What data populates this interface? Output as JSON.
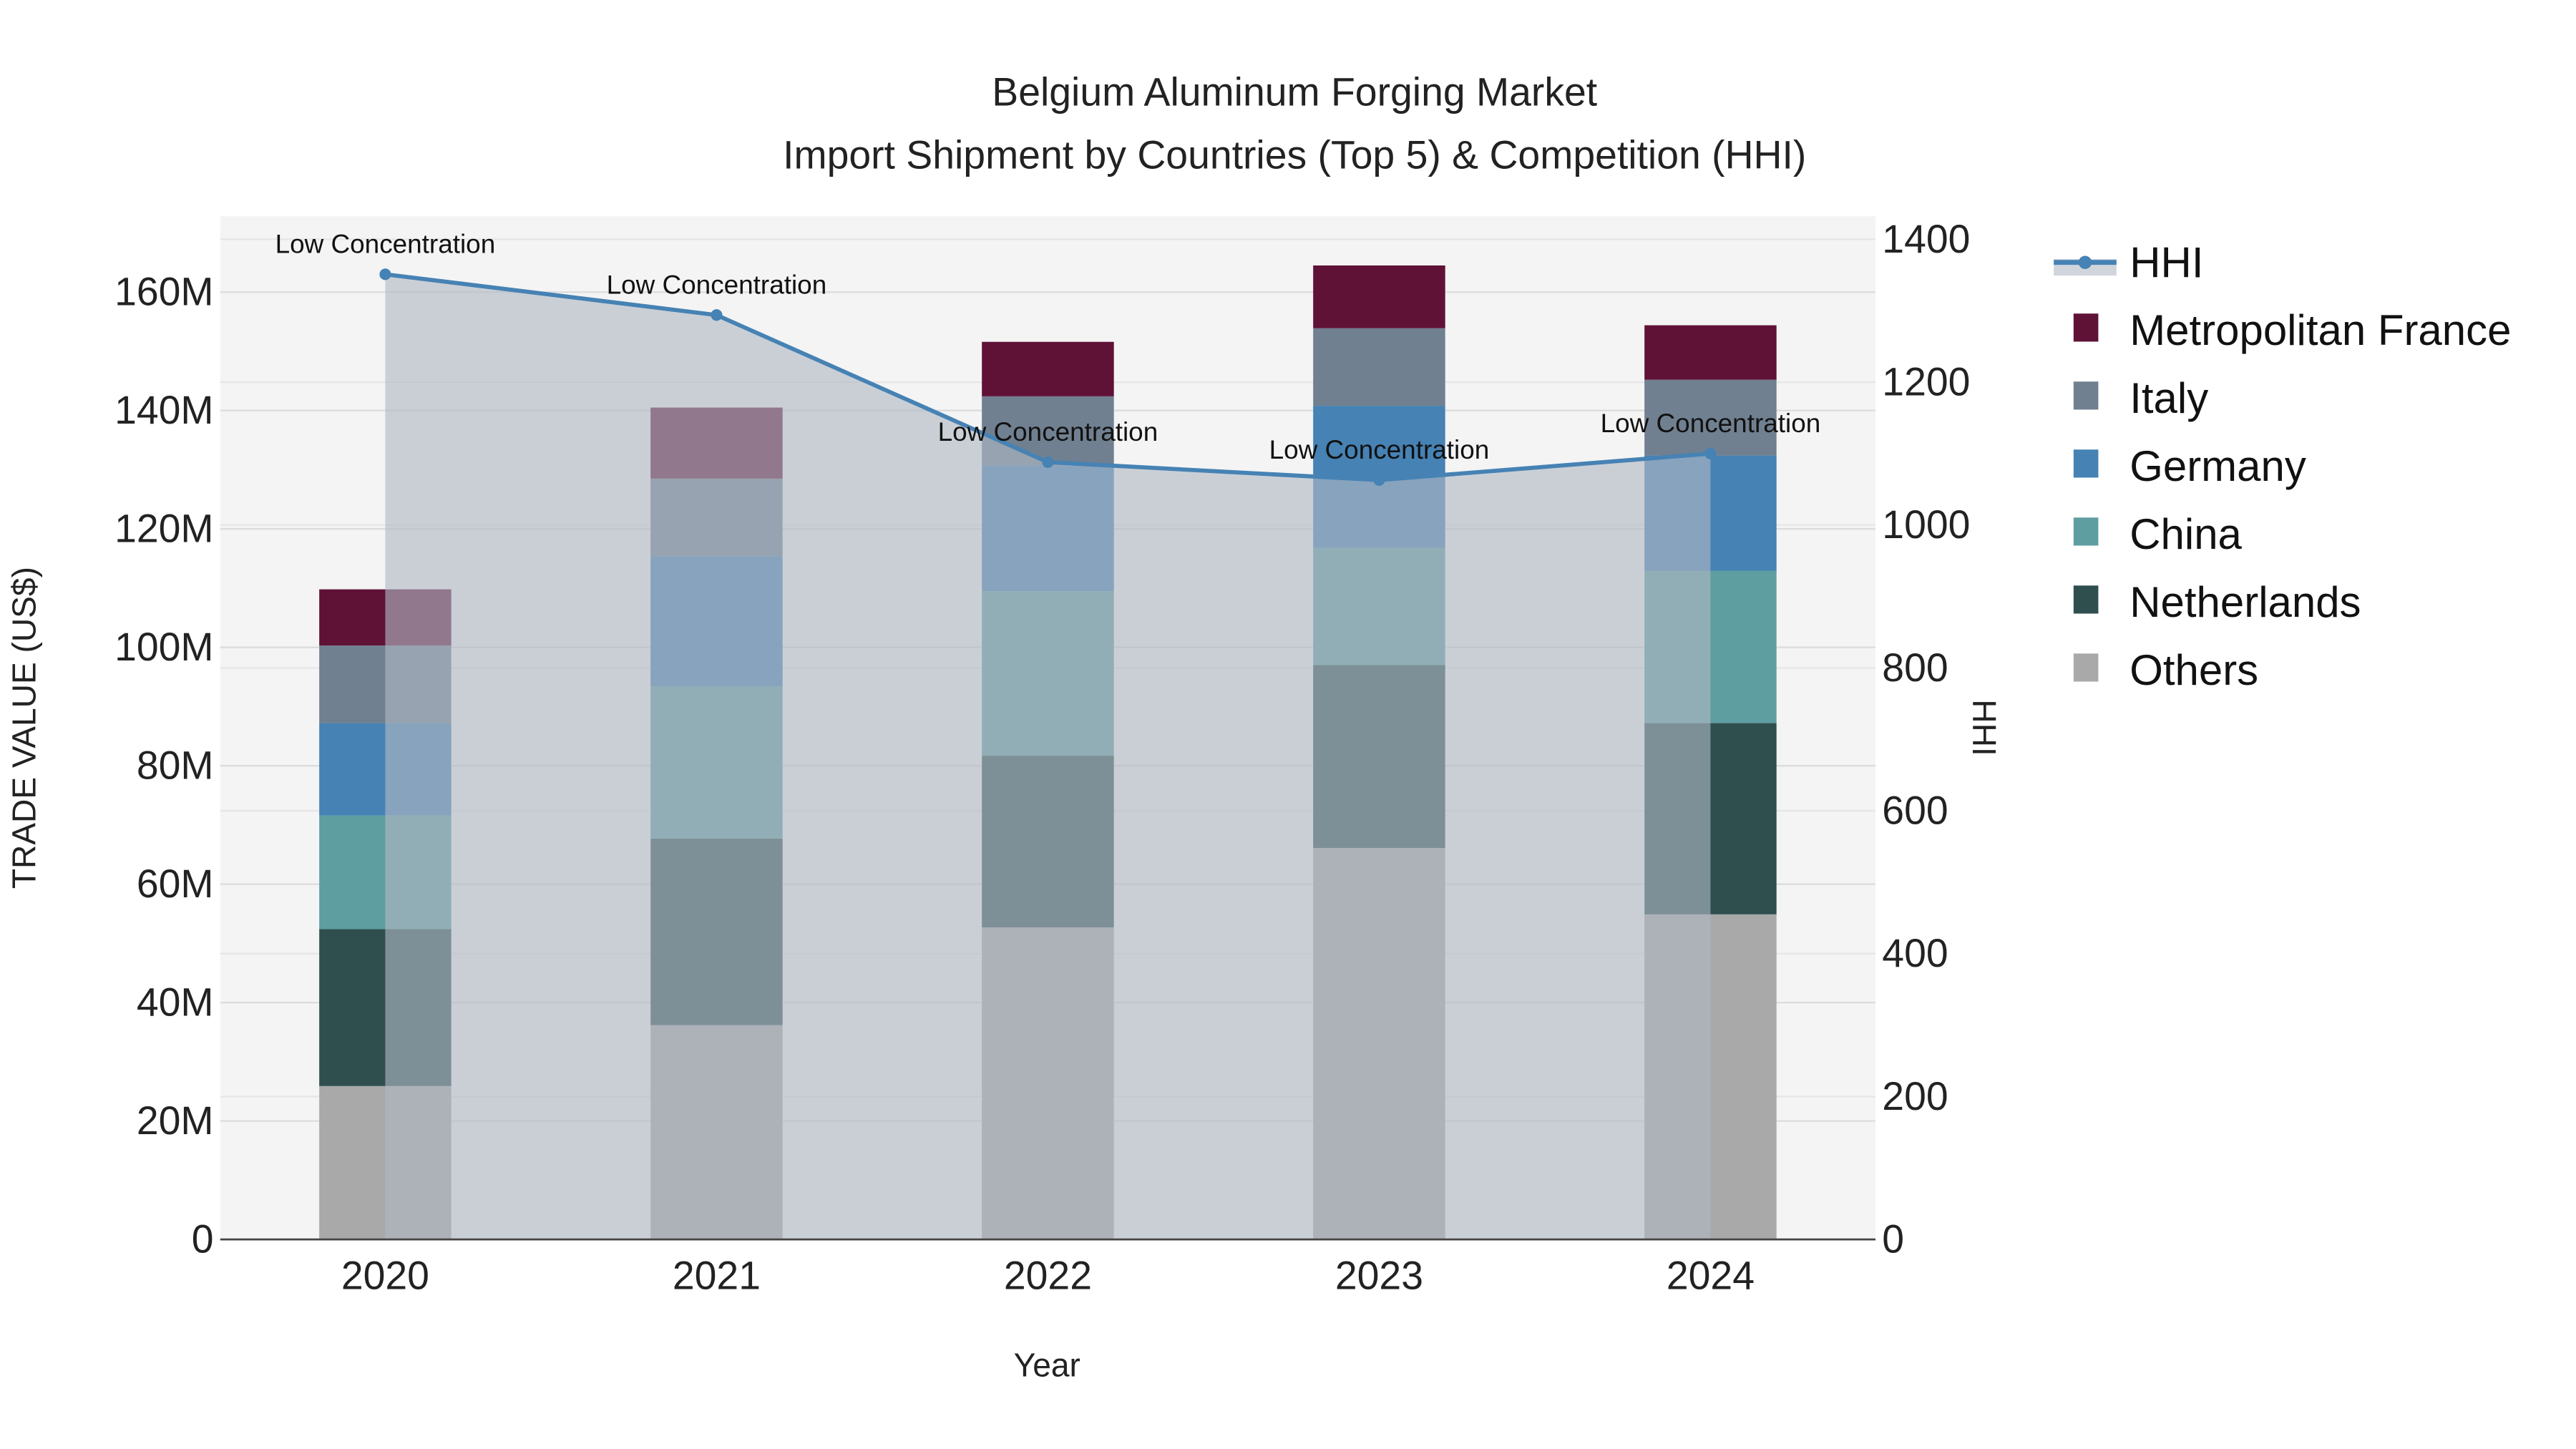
{
  "chart_data": {
    "type": "bar",
    "stacked": true,
    "title": "Belgium Aluminum Forging Market",
    "subtitle": "Import Shipment by Countries (Top 5) & Competition (HHI)",
    "xlabel": "Year",
    "ylabel": "TRADE VALUE (US$)",
    "y2label": "HHI",
    "categories": [
      "2020",
      "2021",
      "2022",
      "2023",
      "2024"
    ],
    "ylim": [
      0,
      172
    ],
    "y_unit": "M",
    "yticks": [
      "0",
      "20M",
      "40M",
      "60M",
      "80M",
      "100M",
      "120M",
      "140M",
      "160M"
    ],
    "ytick_values": [
      0,
      20,
      40,
      60,
      80,
      100,
      120,
      140,
      160
    ],
    "y2lim": [
      0,
      1433
    ],
    "y2ticks": [
      "0",
      "200",
      "400",
      "600",
      "800",
      "1000",
      "1200",
      "1400"
    ],
    "y2tick_values": [
      0,
      200,
      400,
      600,
      800,
      1000,
      1200,
      1400
    ],
    "grid": true,
    "legend_placement": "right",
    "series": [
      {
        "name": "Others",
        "color": "#a9a9a9",
        "values": [
          25.9,
          36.2,
          52.7,
          66.1,
          54.9
        ]
      },
      {
        "name": "Netherlands",
        "color": "#2f4f4f",
        "values": [
          26.5,
          31.5,
          29.0,
          30.9,
          32.3
        ]
      },
      {
        "name": "China",
        "color": "#5f9ea0",
        "values": [
          19.2,
          25.7,
          27.8,
          19.8,
          25.7
        ]
      },
      {
        "name": "Germany",
        "color": "#4682b4",
        "values": [
          15.6,
          22.0,
          21.2,
          24.0,
          19.5
        ]
      },
      {
        "name": "Italy",
        "color": "#708090",
        "values": [
          13.1,
          13.1,
          11.7,
          13.1,
          12.8
        ]
      },
      {
        "name": "Metropolitan France",
        "color": "#5f1236",
        "values": [
          9.5,
          12.0,
          9.2,
          10.6,
          9.2
        ]
      }
    ],
    "line": {
      "name": "HHI",
      "color": "#4682b4",
      "values": [
        1351,
        1294,
        1088,
        1063,
        1100
      ],
      "annotations": [
        "Low Concentration",
        "Low Concentration",
        "Low Concentration",
        "Low Concentration",
        "Low Concentration"
      ]
    },
    "legend": [
      "HHI",
      "Metropolitan France",
      "Italy",
      "Germany",
      "China",
      "Netherlands",
      "Others"
    ]
  }
}
